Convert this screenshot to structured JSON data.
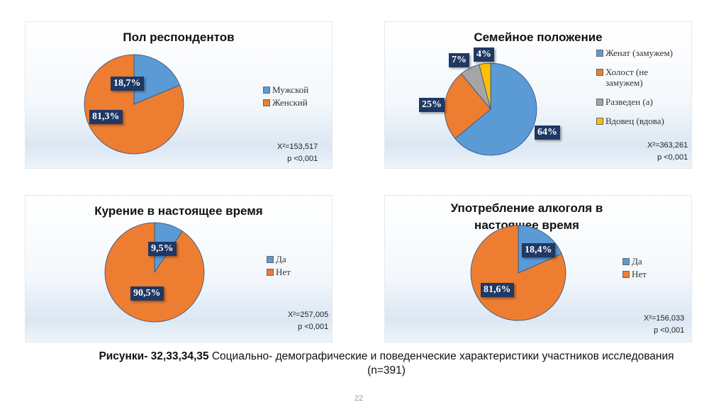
{
  "chart_data": [
    {
      "type": "pie",
      "title": "Пол респондентов",
      "categories": [
        "Мужской",
        "Женский"
      ],
      "values": [
        18.7,
        81.3
      ],
      "labels": [
        "18,7%",
        "81,3%"
      ],
      "colors": [
        "#5b9bd5",
        "#ed7d31"
      ],
      "stat": "X²=153,517",
      "p": "p <0,001",
      "legend": "right"
    },
    {
      "type": "pie",
      "title": "Семейное положение",
      "categories": [
        "Женат (замужем)",
        "Холост (не замужем)",
        "Разведен (а)",
        "Вдовец (вдова)"
      ],
      "values": [
        64,
        25,
        7,
        4
      ],
      "labels": [
        "64%",
        "25%",
        "7%",
        "4%"
      ],
      "colors": [
        "#5b9bd5",
        "#ed7d31",
        "#a5a5a5",
        "#ffc000"
      ],
      "stat": "X²=363,261",
      "p": "p <0,001",
      "legend": "right"
    },
    {
      "type": "pie",
      "title": "Курение в настоящее время",
      "categories": [
        "Да",
        "Нет"
      ],
      "values": [
        9.5,
        90.5
      ],
      "labels": [
        "9,5%",
        "90,5%"
      ],
      "colors": [
        "#5b9bd5",
        "#ed7d31"
      ],
      "stat": "X²=257,005",
      "p": "p <0,001",
      "legend": "right"
    },
    {
      "type": "pie",
      "title": "Употребление алкоголя в настоящее время",
      "categories": [
        "Да",
        "Нет"
      ],
      "values": [
        18.4,
        81.6
      ],
      "labels": [
        "18,4%",
        "81,6%"
      ],
      "colors": [
        "#5b9bd5",
        "#ed7d31"
      ],
      "stat": "X²=156,033",
      "p": "p <0,001",
      "legend": "right"
    }
  ],
  "caption": {
    "bold": "Рисунки- 32,33,34,35",
    "text": " Социально- демографические и поведенческие характеристики участников исследования (n=391)"
  },
  "page_number": "22"
}
